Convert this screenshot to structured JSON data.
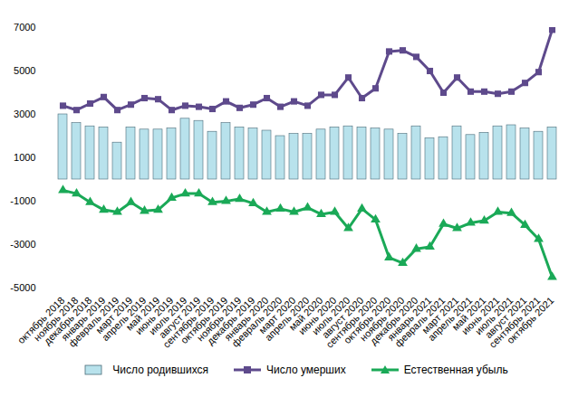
{
  "chart_data": {
    "type": "bar",
    "categories": [
      "октябрь 2018",
      "ноябрь 2018",
      "декабрь 2018",
      "январь 2019",
      "февраль 2019",
      "март 2019",
      "апрель 2019",
      "май 2019",
      "июнь 2019",
      "июль 2019",
      "август 2019",
      "сентябрь 2019",
      "октябрь 2019",
      "ноябрь 2019",
      "декабрь 2019",
      "январь 2020",
      "февраль 2020",
      "март 2020",
      "апрель 2020",
      "май 2020",
      "июнь 2020",
      "июль 2020",
      "август 2020",
      "сентябрь 2020",
      "октябрь 2020",
      "ноябрь 2020",
      "декабрь 2020",
      "январь 2021",
      "февраль 2021",
      "март 2021",
      "апрель 2021",
      "май 2021",
      "июнь 2021",
      "июль 2021",
      "август 2021",
      "сентябрь 2021",
      "октябрь 2021"
    ],
    "series": [
      {
        "name": "Число родившихся",
        "type": "bar",
        "color": "#b8e2ec",
        "values": [
          3000,
          2600,
          2450,
          2400,
          1700,
          2400,
          2300,
          2300,
          2350,
          2800,
          2700,
          2200,
          2600,
          2400,
          2350,
          2250,
          2000,
          2100,
          2100,
          2300,
          2400,
          2450,
          2400,
          2350,
          2300,
          2100,
          2450,
          1900,
          1950,
          2450,
          2050,
          2150,
          2450,
          2500,
          2350,
          2200,
          2400
        ]
      },
      {
        "name": "Число умерших",
        "type": "line",
        "marker": "square",
        "color": "#5e4a8c",
        "values": [
          3400,
          3200,
          3500,
          3800,
          3200,
          3450,
          3750,
          3700,
          3200,
          3400,
          3350,
          3250,
          3600,
          3300,
          3450,
          3750,
          3350,
          3600,
          3400,
          3900,
          3900,
          4700,
          3750,
          4200,
          5900,
          5950,
          5650,
          5000,
          4000,
          4700,
          4050,
          4050,
          3950,
          4050,
          4450,
          4950,
          6900
        ]
      },
      {
        "name": "Естественная убыль",
        "type": "line",
        "marker": "triangle",
        "color": "#1aa957",
        "values": [
          -500,
          -650,
          -1050,
          -1400,
          -1500,
          -1050,
          -1450,
          -1400,
          -850,
          -650,
          -650,
          -1050,
          -1000,
          -900,
          -1100,
          -1500,
          -1350,
          -1500,
          -1300,
          -1600,
          -1500,
          -2250,
          -1350,
          -1850,
          -3600,
          -3850,
          -3200,
          -3100,
          -2050,
          -2250,
          -2000,
          -1900,
          -1500,
          -1550,
          -2100,
          -2750,
          -4500
        ]
      }
    ],
    "ylim": [
      -5000,
      7000
    ],
    "yticks": [
      -5000,
      -3000,
      -1000,
      1000,
      3000,
      5000,
      7000
    ],
    "grid": false,
    "legend": "bottom"
  }
}
